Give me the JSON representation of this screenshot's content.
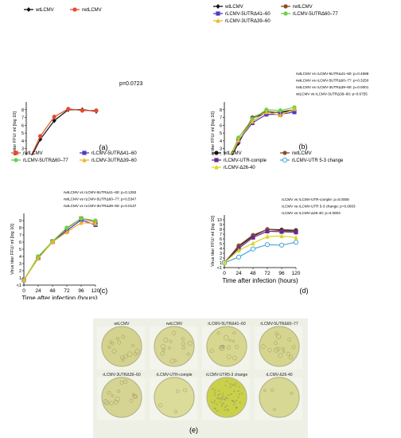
{
  "x_ticks": [
    0,
    24,
    48,
    72,
    96,
    120
  ],
  "xlabel": "Time after infection (hours)",
  "ylabel": "Virus titer FFU/ ml [log 10]",
  "colors": {
    "wt": "#111111",
    "rwt": "#e84a2c",
    "d41_60": "#4b3cc8",
    "d60_77": "#6ad14a",
    "d39_60": "#f0b428",
    "brown": "#8b4a2a",
    "comple": "#6a2a8a",
    "change": "#45a8d8",
    "d26_40": "#d8d820"
  },
  "chart_data": [
    {
      "type": "line",
      "panel_label": "(a)",
      "ylim": [
        -1,
        8
      ],
      "y_ticks": [
        "<1",
        "1",
        "2",
        "3",
        "4",
        "5",
        "6",
        "7",
        "8"
      ],
      "x": [
        0,
        24,
        48,
        72,
        96,
        120
      ],
      "series": [
        {
          "name": "wtLCMV",
          "color_key": "wt",
          "marker": "diamond",
          "values": [
            -0.3,
            3.2,
            5.6,
            7.0,
            7.0,
            6.8
          ]
        },
        {
          "name": "rwtLCMV",
          "color_key": "rwt",
          "marker": "circle",
          "values": [
            -0.3,
            3.6,
            6.1,
            7.1,
            6.9,
            6.9
          ]
        }
      ],
      "annotations": [
        "p=0.0723"
      ]
    },
    {
      "type": "line",
      "panel_label": "(b)",
      "ylim": [
        -1,
        8
      ],
      "y_ticks": [
        "<1",
        "1",
        "2",
        "3",
        "4",
        "5",
        "6",
        "7",
        "8"
      ],
      "x": [
        0,
        24,
        48,
        72,
        96,
        120
      ],
      "series": [
        {
          "name": "wtLCMV",
          "color_key": "wt",
          "marker": "diamond",
          "values": [
            -0.8,
            2.7,
            5.9,
            6.6,
            6.7,
            7.0
          ]
        },
        {
          "name": "rwtLCMV",
          "color_key": "brown",
          "marker": "circle",
          "values": [
            -0.8,
            2.9,
            6.0,
            6.8,
            6.6,
            6.9
          ]
        },
        {
          "name": "rLCMV-5UTRΔ41–60",
          "color_key": "d41_60",
          "marker": "square",
          "values": [
            -0.8,
            3.0,
            5.3,
            6.4,
            6.4,
            6.7
          ]
        },
        {
          "name": "rLCMV-5UTRΔ60–77",
          "color_key": "d60_77",
          "marker": "circle",
          "values": [
            -0.8,
            3.4,
            5.8,
            7.0,
            6.9,
            7.3
          ]
        },
        {
          "name": "rLCMV-3UTRΔ39–60",
          "color_key": "d39_60",
          "marker": "triangle",
          "values": [
            -0.8,
            3.1,
            5.5,
            6.7,
            6.3,
            7.1
          ]
        }
      ],
      "annotations": [
        "rwtLCMV vs rLCMV-5UTRΔ41–60: p=0.4698",
        "rwtLCMV vs rLCMV-5UTRΔ60–77: p=0.3250",
        "rwtLCMV vs rLCMV-3UTRΔ39–60: p=0.0001",
        "wtLCMV vs rLCMV-3UTRΔ39–60: p=0.6755"
      ]
    },
    {
      "type": "line",
      "panel_label": "(c)",
      "ylim": [
        -1,
        9
      ],
      "y_ticks": [
        "<1",
        "1",
        "2",
        "3",
        "4",
        "5",
        "6",
        "7",
        "8",
        "9"
      ],
      "x": [
        0,
        24,
        48,
        72,
        96,
        120
      ],
      "series": [
        {
          "name": "rwtLCMV",
          "color_key": "rwt",
          "marker": "square",
          "values": [
            -0.3,
            2.9,
            5.0,
            6.9,
            8.3,
            7.8
          ]
        },
        {
          "name": "rLCMV-5UTRΔ41–60",
          "color_key": "d41_60",
          "marker": "square",
          "values": [
            -0.3,
            2.8,
            5.1,
            6.6,
            8.1,
            7.4
          ]
        },
        {
          "name": "rLCMV-5UTRΔ60–77",
          "color_key": "d60_77",
          "marker": "circle",
          "values": [
            -0.3,
            3.0,
            5.1,
            7.0,
            8.3,
            8.0
          ]
        },
        {
          "name": "rLCMV-3UTRΔ39–60",
          "color_key": "d39_60",
          "marker": "triangle",
          "values": [
            -0.3,
            2.7,
            5.0,
            6.4,
            7.7,
            7.6
          ]
        }
      ],
      "annotations": [
        "rwtLCMV vs rLCMV-5UTRΔ41–60: p=0.1292",
        "rwtLCMV vs rLCMV-5UTRΔ60–77: p=0.5347",
        "rwtLCMV vs rLCMV-3UTRΔ39–60: p=0.0137"
      ]
    },
    {
      "type": "line",
      "panel_label": "(d)",
      "ylim": [
        -1,
        10
      ],
      "y_ticks": [
        "<1",
        "1",
        "2",
        "3",
        "4",
        "5",
        "6",
        "7",
        "8",
        "9",
        "10"
      ],
      "x": [
        0,
        24,
        48,
        72,
        96,
        120
      ],
      "series": [
        {
          "name": "wtLCMV",
          "color_key": "wt",
          "marker": "circle",
          "values": [
            0.0,
            3.4,
            5.6,
            7.0,
            6.9,
            6.8
          ]
        },
        {
          "name": "rwtLCMV",
          "color_key": "brown",
          "marker": "circle",
          "values": [
            0.0,
            3.6,
            5.8,
            7.0,
            6.7,
            6.6
          ]
        },
        {
          "name": "rLCMV-UTR-comple",
          "color_key": "comple",
          "marker": "square",
          "values": [
            0.0,
            3.0,
            5.3,
            6.6,
            6.5,
            6.4
          ]
        },
        {
          "name": "rLCMV-UTR 5-3 change",
          "color_key": "change",
          "marker": "circle-open",
          "values": [
            0.0,
            1.2,
            2.9,
            3.8,
            3.7,
            4.3
          ]
        },
        {
          "name": "rLCMV-Δ26-40",
          "color_key": "d26_40",
          "marker": "triangle",
          "values": [
            0.0,
            2.6,
            4.1,
            5.5,
            5.6,
            5.3
          ]
        }
      ],
      "annotations": [
        "rLCMV vs rLCMV-UTR-comple: p=0.0008",
        "rLCMV vs rLCMV-UTR 5-3 change: p=0.0003",
        "rLCMV vs rLCMV-Δ26-40: p=0.0003"
      ]
    }
  ],
  "plates": {
    "panel_label": "(e)",
    "labels": [
      "wtLCMV",
      "rwtLCMV",
      "rLCMV-5UTRΔ41–60",
      "rLCMV-5UTRΔ60–77",
      "rLCMV-3UTRΔ39–60",
      "rLCMV-UTR-comple",
      "rLCMV-UTR5-3 change",
      "rLCMV-Δ26-40"
    ],
    "plaque_colors": [
      "#d4d38e",
      "#d7d695",
      "#d8d790",
      "#d6d58f",
      "#d5d493",
      "#dcdc9a",
      "#c9d14a",
      "#d8d895"
    ]
  }
}
